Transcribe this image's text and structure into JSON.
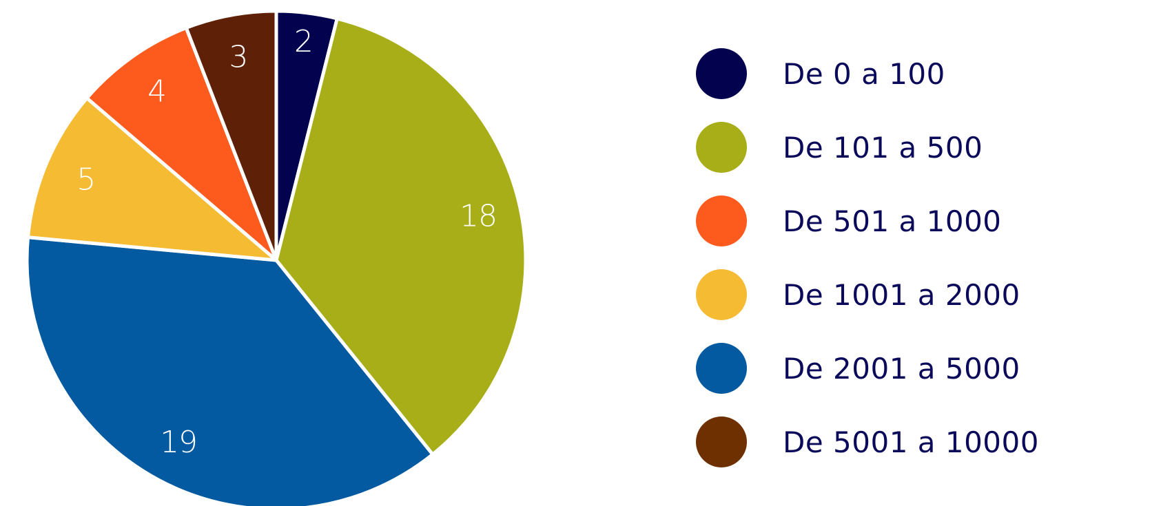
{
  "chart_data": {
    "type": "pie",
    "title": "",
    "slices": [
      {
        "label": "De 0 a 100",
        "value": 2,
        "color": "#02024f"
      },
      {
        "label": "De 101 a 500",
        "value": 18,
        "color": "#a8ae17"
      },
      {
        "label": "De 501 a 1000",
        "value": 4,
        "color": "#fd5a1e"
      },
      {
        "label": "De 1001 a 2000",
        "value": 5,
        "color": "#f4bb33"
      },
      {
        "label": "De 2001 a 5000",
        "value": 19,
        "color": "#035aa1"
      },
      {
        "label": "De 5001 a 10000",
        "value": 3,
        "color": "#5e2107"
      }
    ],
    "draw_order": [
      0,
      1,
      4,
      3,
      2,
      5
    ],
    "legend_position": "right",
    "legend_swatch_colors": [
      "#02024f",
      "#a8ae17",
      "#fd5a1e",
      "#f4bb33",
      "#035aa1",
      "#6e3000"
    ],
    "legend_text_color": "#0b0a5a",
    "slice_label_color": "#ffffff",
    "separator_color": "#ffffff"
  }
}
